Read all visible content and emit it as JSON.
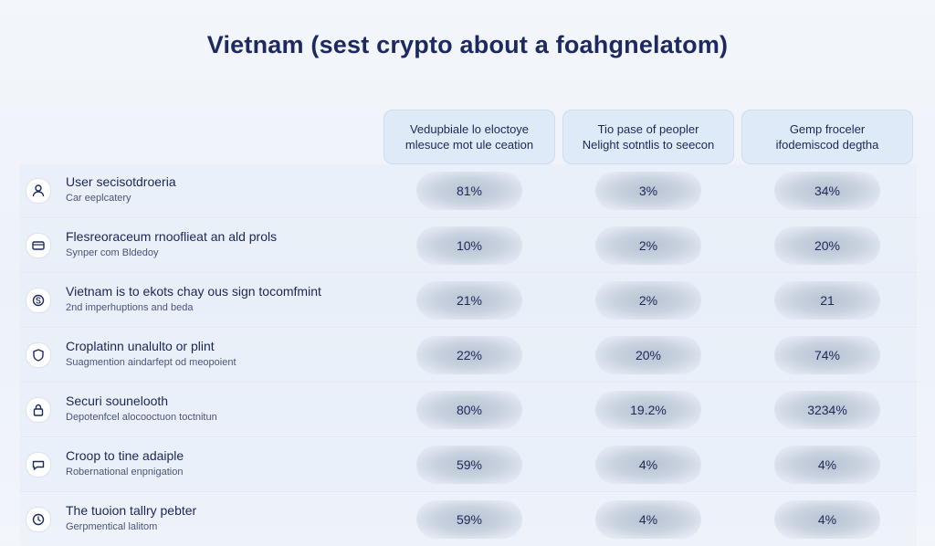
{
  "title": "Vietnam (sest crypto about a foahgnelatom)",
  "columns": [
    {
      "line1": "Vedupbiale lo eloctoye",
      "line2": "mlesuce mot ule ceation"
    },
    {
      "line1": "Tio pase of peopler",
      "line2": "Nelight sotntlis to seecon"
    },
    {
      "line1": "Gemp froceler",
      "line2": "ifodemiscod degtha"
    }
  ],
  "rows": [
    {
      "title": "User secisotdroeria",
      "subtitle": "Car eeplcatery",
      "icon": "user-icon",
      "values": [
        "81%",
        "3%",
        "34%"
      ]
    },
    {
      "title": "Flesreoraceum rnooflieat an ald prols",
      "subtitle": "Synper com Bldedoy",
      "icon": "card-icon",
      "values": [
        "10%",
        "2%",
        "20%"
      ]
    },
    {
      "title": "Vietnam is to ekots chay ous sign tocomfmint",
      "subtitle": "2nd imperhuptions and beda",
      "icon": "coin-icon",
      "values": [
        "21%",
        "2%",
        "21"
      ]
    },
    {
      "title": "Croplatinn unalulto or plint",
      "subtitle": "Suagmention aindarfept od meopoient",
      "icon": "shield-icon",
      "values": [
        "22%",
        "20%",
        "74%"
      ]
    },
    {
      "title": "Securi sounelooth",
      "subtitle": "Depotenfcel alocooctuon toctnitun",
      "icon": "lock-icon",
      "values": [
        "80%",
        "19.2%",
        "3234%"
      ]
    },
    {
      "title": "Croop to tine adaiple",
      "subtitle": "Robernational enpnigation",
      "icon": "chat-icon",
      "values": [
        "59%",
        "4%",
        "4%"
      ]
    },
    {
      "title": "The tuoion tallry pebter",
      "subtitle": "Gerpmentical lalitom",
      "icon": "clock-icon",
      "values": [
        "59%",
        "4%",
        "4%"
      ]
    }
  ]
}
